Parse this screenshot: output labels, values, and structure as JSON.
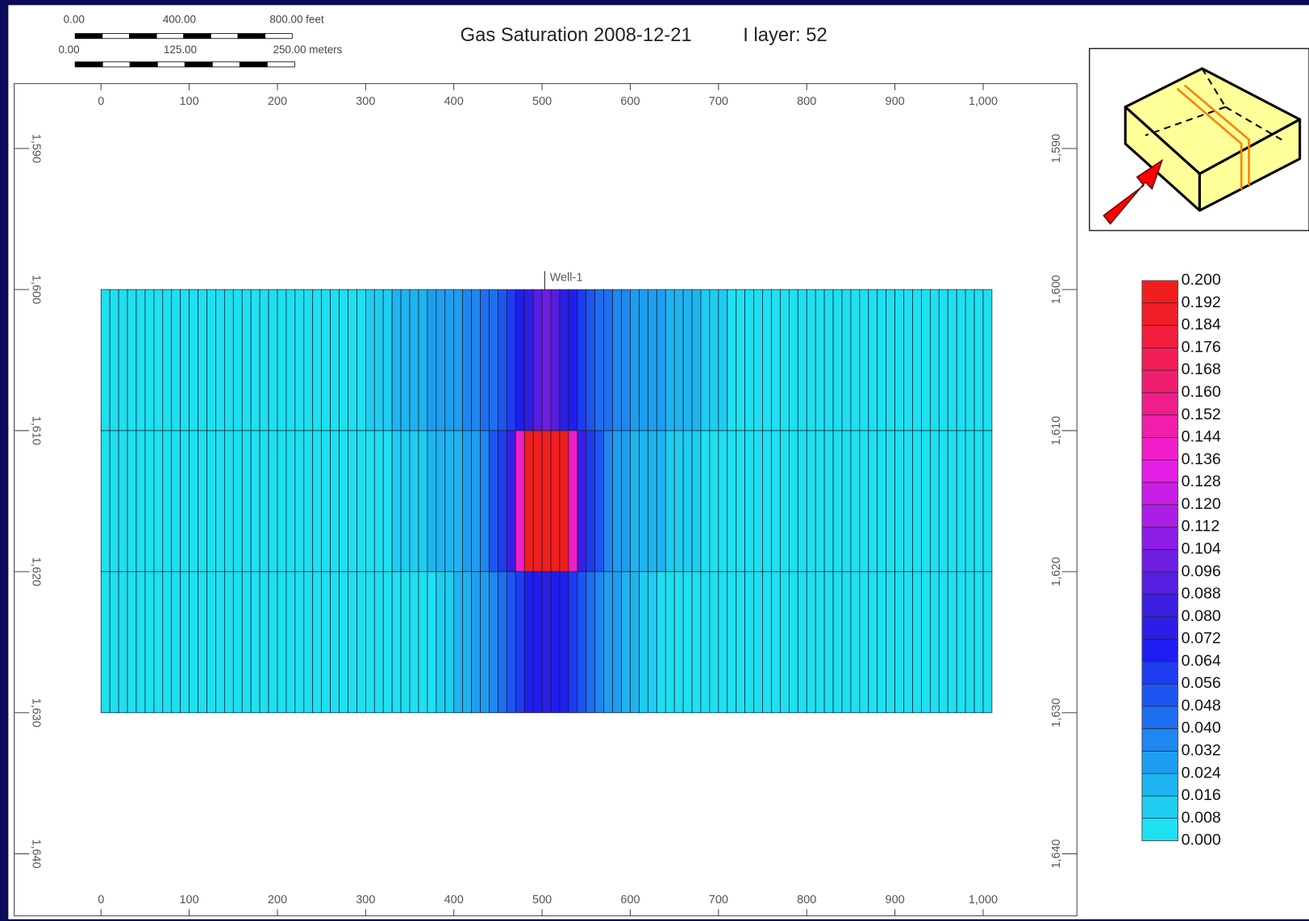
{
  "chart_data": {
    "type": "heatmap",
    "title": "Gas Saturation 2008-12-21",
    "subtitle": "I layer: 52",
    "scale_bar": {
      "feet_labels": [
        "0.00",
        "400.00",
        "800.00 feet"
      ],
      "meters_labels": [
        "0.00",
        "125.00",
        "250.00 meters"
      ]
    },
    "xlim": [
      -98.4,
      1106.3
    ],
    "ylim": [
      1644.4,
      1585.4
    ],
    "xticks": [
      0,
      100,
      200,
      300,
      400,
      500,
      600,
      700,
      800,
      900,
      {
        "value": 1000,
        "label": "1,000"
      }
    ],
    "yticks": [
      {
        "value": 1590,
        "label": "1,590"
      },
      {
        "value": 1600,
        "label": "1,600"
      },
      {
        "value": 1610,
        "label": "1,610"
      },
      {
        "value": 1620,
        "label": "1,620"
      },
      {
        "value": 1630,
        "label": "1,630"
      },
      {
        "value": 1640,
        "label": "1,640"
      }
    ],
    "well": {
      "name": "Well-1",
      "x": 503
    },
    "x_edges": [
      0,
      10,
      20,
      30,
      40,
      50,
      60,
      70,
      80,
      90,
      100,
      110,
      120,
      130,
      140,
      150,
      160,
      170,
      180,
      190,
      200,
      210,
      220,
      230,
      240,
      250,
      260,
      270,
      280,
      290,
      300,
      310,
      320,
      330,
      340,
      350,
      360,
      370,
      380,
      390,
      400,
      410,
      420,
      430,
      440,
      450,
      460,
      470,
      480,
      490,
      500,
      510,
      520,
      530,
      540,
      550,
      560,
      570,
      580,
      590,
      600,
      610,
      620,
      630,
      640,
      650,
      660,
      670,
      680,
      690,
      700,
      710,
      720,
      730,
      740,
      750,
      760,
      770,
      780,
      790,
      800,
      810,
      820,
      830,
      840,
      850,
      860,
      870,
      880,
      890,
      900,
      910,
      920,
      930,
      940,
      950,
      960,
      970,
      980,
      990,
      1000,
      1010
    ],
    "y_edges": [
      1600,
      1610,
      1620,
      1630
    ],
    "rows": [
      [
        0.006,
        0.006,
        0.006,
        0.006,
        0.006,
        0.006,
        0.006,
        0.006,
        0.006,
        0.006,
        0.006,
        0.006,
        0.006,
        0.006,
        0.006,
        0.006,
        0.006,
        0.006,
        0.006,
        0.006,
        0.006,
        0.006,
        0.006,
        0.006,
        0.006,
        0.006,
        0.006,
        0.006,
        0.006,
        0.006,
        0.01,
        0.012,
        0.014,
        0.016,
        0.018,
        0.02,
        0.022,
        0.024,
        0.026,
        0.028,
        0.03,
        0.032,
        0.036,
        0.04,
        0.044,
        0.048,
        0.056,
        0.064,
        0.072,
        0.09,
        0.1,
        0.09,
        0.072,
        0.064,
        0.056,
        0.048,
        0.044,
        0.04,
        0.036,
        0.032,
        0.03,
        0.028,
        0.026,
        0.024,
        0.022,
        0.02,
        0.018,
        0.016,
        0.014,
        0.012,
        0.01,
        0.006,
        0.006,
        0.006,
        0.006,
        0.006,
        0.006,
        0.006,
        0.006,
        0.006,
        0.006,
        0.006,
        0.006,
        0.006,
        0.006,
        0.006,
        0.006,
        0.006,
        0.006,
        0.006,
        0.006,
        0.006,
        0.006,
        0.006,
        0.006,
        0.006,
        0.006,
        0.006,
        0.006,
        0.006,
        0.006
      ],
      [
        0.006,
        0.006,
        0.006,
        0.006,
        0.006,
        0.006,
        0.006,
        0.006,
        0.006,
        0.006,
        0.006,
        0.006,
        0.006,
        0.006,
        0.006,
        0.006,
        0.006,
        0.006,
        0.006,
        0.006,
        0.006,
        0.006,
        0.006,
        0.006,
        0.006,
        0.006,
        0.006,
        0.006,
        0.006,
        0.006,
        0.006,
        0.006,
        0.006,
        0.009,
        0.01,
        0.012,
        0.014,
        0.016,
        0.018,
        0.02,
        0.022,
        0.026,
        0.03,
        0.036,
        0.048,
        0.06,
        0.08,
        0.14,
        0.2,
        0.2,
        0.2,
        0.2,
        0.2,
        0.14,
        0.08,
        0.06,
        0.048,
        0.036,
        0.03,
        0.026,
        0.022,
        0.02,
        0.018,
        0.016,
        0.014,
        0.012,
        0.01,
        0.009,
        0.006,
        0.006,
        0.006,
        0.006,
        0.006,
        0.006,
        0.006,
        0.006,
        0.006,
        0.006,
        0.006,
        0.006,
        0.006,
        0.006,
        0.006,
        0.006,
        0.006,
        0.006,
        0.006,
        0.006,
        0.006,
        0.006,
        0.006,
        0.006,
        0.006,
        0.006,
        0.006,
        0.006,
        0.006,
        0.006,
        0.006,
        0.006,
        0.006
      ],
      [
        0.006,
        0.006,
        0.006,
        0.006,
        0.006,
        0.006,
        0.006,
        0.006,
        0.006,
        0.006,
        0.006,
        0.006,
        0.006,
        0.006,
        0.006,
        0.006,
        0.006,
        0.006,
        0.006,
        0.006,
        0.006,
        0.006,
        0.006,
        0.006,
        0.006,
        0.006,
        0.006,
        0.006,
        0.006,
        0.006,
        0.006,
        0.006,
        0.006,
        0.006,
        0.006,
        0.006,
        0.006,
        0.006,
        0.01,
        0.012,
        0.016,
        0.02,
        0.024,
        0.028,
        0.032,
        0.04,
        0.048,
        0.056,
        0.064,
        0.068,
        0.072,
        0.068,
        0.064,
        0.056,
        0.048,
        0.04,
        0.032,
        0.028,
        0.024,
        0.02,
        0.016,
        0.012,
        0.01,
        0.006,
        0.006,
        0.006,
        0.006,
        0.006,
        0.006,
        0.006,
        0.006,
        0.006,
        0.006,
        0.006,
        0.006,
        0.006,
        0.006,
        0.006,
        0.006,
        0.006,
        0.006,
        0.006,
        0.006,
        0.006,
        0.006,
        0.006,
        0.006,
        0.006,
        0.006,
        0.006,
        0.006,
        0.006,
        0.006,
        0.006,
        0.006,
        0.006,
        0.006,
        0.006,
        0.006,
        0.006,
        0.006
      ]
    ],
    "colorbar": {
      "ticks": [
        {
          "value": 0,
          "label": "0.000"
        },
        {
          "value": 0.008,
          "label": "0.008"
        },
        {
          "value": 0.016,
          "label": "0.016"
        },
        {
          "value": 0.024,
          "label": "0.024"
        },
        {
          "value": 0.032,
          "label": "0.032"
        },
        {
          "value": 0.04,
          "label": "0.040"
        },
        {
          "value": 0.048,
          "label": "0.048"
        },
        {
          "value": 0.056,
          "label": "0.056"
        },
        {
          "value": 0.064,
          "label": "0.064"
        },
        {
          "value": 0.072,
          "label": "0.072"
        },
        {
          "value": 0.08,
          "label": "0.080"
        },
        {
          "value": 0.088,
          "label": "0.088"
        },
        {
          "value": 0.096,
          "label": "0.096"
        },
        {
          "value": 0.104,
          "label": "0.104"
        },
        {
          "value": 0.112,
          "label": "0.112"
        },
        {
          "value": 0.12,
          "label": "0.120"
        },
        {
          "value": 0.128,
          "label": "0.128"
        },
        {
          "value": 0.136,
          "label": "0.136"
        },
        {
          "value": 0.144,
          "label": "0.144"
        },
        {
          "value": 0.152,
          "label": "0.152"
        },
        {
          "value": 0.16,
          "label": "0.160"
        },
        {
          "value": 0.168,
          "label": "0.168"
        },
        {
          "value": 0.176,
          "label": "0.176"
        },
        {
          "value": 0.184,
          "label": "0.184"
        },
        {
          "value": 0.192,
          "label": "0.192"
        },
        {
          "value": 0.2,
          "label": "0.200"
        }
      ],
      "colors": [
        "#1ee0f0",
        "#1ecdf0",
        "#1eb4f0",
        "#1e9ef0",
        "#1e87f0",
        "#1e6ef0",
        "#1e55f0",
        "#1e3cf0",
        "#1e1ef0",
        "#2d1ee6",
        "#3c1ee0",
        "#551ee0",
        "#6e1ee0",
        "#8c1ee6",
        "#aa1ee6",
        "#c81ee6",
        "#e61ee6",
        "#f01ec8",
        "#f01eaa",
        "#f01e8c",
        "#f01e6e",
        "#f01e55",
        "#f01e3c",
        "#f01e28",
        "#f01e1e"
      ]
    }
  }
}
